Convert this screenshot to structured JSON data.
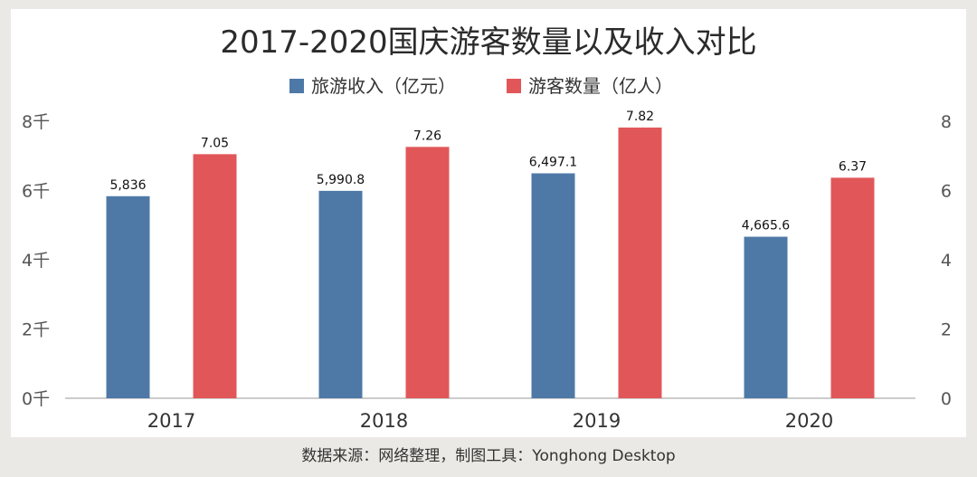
{
  "chart_data": {
    "type": "bar",
    "title": "2017-2020国庆游客数量以及收入对比",
    "categories": [
      "2017",
      "2018",
      "2019",
      "2020"
    ],
    "series": [
      {
        "name": "旅游收入（亿元）",
        "axis": "left",
        "color": "#4e79a7",
        "values": [
          5836,
          5990.8,
          6497.1,
          4665.6
        ],
        "labels": [
          "5,836",
          "5,990.8",
          "6,497.1",
          "4,665.6"
        ]
      },
      {
        "name": "游客数量（亿人）",
        "axis": "right",
        "color": "#e15759",
        "values": [
          7.05,
          7.26,
          7.82,
          6.37
        ],
        "labels": [
          "7.05",
          "7.26",
          "7.82",
          "6.37"
        ]
      }
    ],
    "y_left": {
      "ylim": [
        0,
        8000
      ],
      "ticks": [
        0,
        2000,
        4000,
        6000,
        8000
      ],
      "tick_labels": [
        "0千",
        "2千",
        "4千",
        "6千",
        "8千"
      ]
    },
    "y_right": {
      "ylim": [
        0,
        8
      ],
      "ticks": [
        0,
        2,
        4,
        6,
        8
      ],
      "tick_labels": [
        "0",
        "2",
        "4",
        "6",
        "8"
      ]
    },
    "legend_position": "top-center",
    "grid": false
  },
  "source_text": "数据来源：网络整理，制图工具：Yonghong Desktop"
}
